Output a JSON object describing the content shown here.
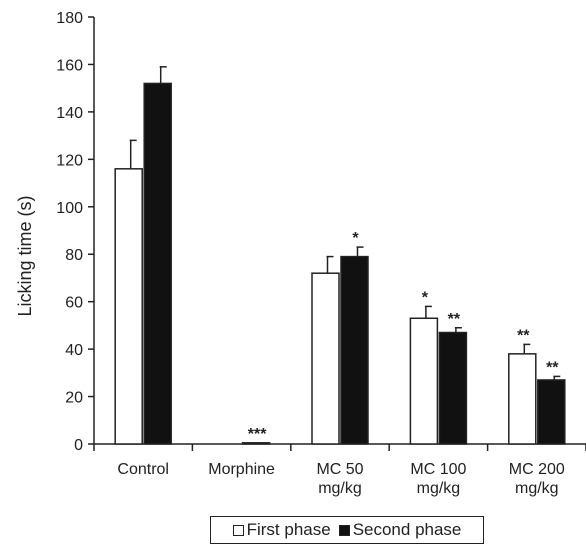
{
  "chart_data": {
    "type": "bar",
    "ylabel": "Licking time (s)",
    "ylim": [
      0,
      180
    ],
    "yticks": [
      0,
      20,
      40,
      60,
      80,
      100,
      120,
      140,
      160,
      180
    ],
    "categories": [
      [
        "Control"
      ],
      [
        "Morphine"
      ],
      [
        "MC 50",
        "mg/kg"
      ],
      [
        "MC 100",
        "mg/kg"
      ],
      [
        "MC 200",
        "mg/kg"
      ]
    ],
    "series": [
      {
        "name": "First phase",
        "fill": "#ffffff",
        "values": [
          116,
          0,
          72,
          53,
          38
        ],
        "errors": [
          12,
          0,
          7,
          5,
          4
        ],
        "annotations": [
          "",
          "",
          "",
          "*",
          "**"
        ]
      },
      {
        "name": "Second phase",
        "fill": "#111111",
        "values": [
          152,
          0.5,
          79,
          47,
          27
        ],
        "errors": [
          7,
          0,
          4,
          2,
          1.5
        ],
        "annotations": [
          "",
          "***",
          "*",
          "**",
          "**"
        ]
      }
    ],
    "grid": false,
    "legend_position": "bottom"
  }
}
